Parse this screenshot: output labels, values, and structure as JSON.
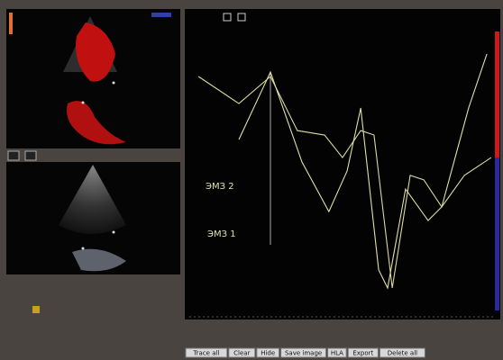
{
  "chart_data": {
    "type": "line",
    "series": [
      {
        "name": "ЭМЗ 2",
        "color": "#d8d8a0",
        "x": [
          4.4,
          17.5,
          27.7,
          36.4,
          45.2,
          51.0,
          56.9,
          61.2,
          67.1,
          72.9,
          77.3,
          83.1,
          90.4,
          99.1
        ],
        "values": [
          80.3,
          71.2,
          80.3,
          62.1,
          60.6,
          53.0,
          62.1,
          60.6,
          9.1,
          47.0,
          45.5,
          36.4,
          47.0,
          53.0
        ]
      },
      {
        "name": "ЭМЗ 1",
        "color": "#e0e0a8",
        "x": [
          17.5,
          27.7,
          37.9,
          46.6,
          52.5,
          56.9,
          62.7,
          65.6,
          71.4,
          78.7,
          83.1,
          91.8,
          97.7
        ],
        "values": [
          59.1,
          81.8,
          51.5,
          34.8,
          48.5,
          69.7,
          15.2,
          9.1,
          42.4,
          31.8,
          36.4,
          69.7,
          87.9
        ]
      }
    ],
    "xlim": [
      0,
      100
    ],
    "ylim": [
      0,
      100
    ]
  },
  "toolbar": {
    "buttons": [
      "Trace all",
      "Clear",
      "Hide",
      "Save image",
      "HLA",
      "Export",
      "Delete all"
    ]
  }
}
